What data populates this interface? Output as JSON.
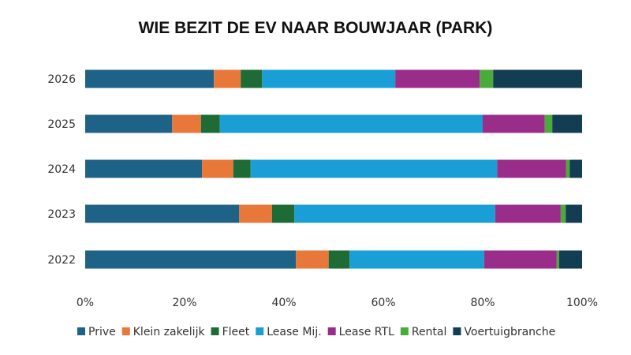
{
  "chart_data": {
    "type": "bar",
    "orientation": "horizontal",
    "stacked": "percent",
    "title": "WIE BEZIT DE EV NAAR BOUWJAAR (PARK)",
    "xlabel": "",
    "ylabel": "",
    "xlim": [
      0,
      100
    ],
    "x_ticks": [
      "0%",
      "20%",
      "40%",
      "60%",
      "80%",
      "100%"
    ],
    "categories": [
      "2026",
      "2025",
      "2024",
      "2023",
      "2022"
    ],
    "legend_position": "bottom",
    "series": [
      {
        "name": "Prive",
        "color": "#1f6287",
        "values": [
          25.9,
          17.5,
          23.5,
          31.0,
          42.4
        ]
      },
      {
        "name": "Klein zakelijk",
        "color": "#e8773a",
        "values": [
          5.4,
          5.8,
          6.3,
          6.6,
          6.6
        ]
      },
      {
        "name": "Fleet",
        "color": "#1e6b35",
        "values": [
          4.3,
          3.8,
          3.5,
          4.5,
          4.2
        ]
      },
      {
        "name": "Lease Mij.",
        "color": "#1a9ed6",
        "values": [
          26.8,
          52.9,
          49.6,
          40.4,
          27.1
        ]
      },
      {
        "name": "Lease RTL",
        "color": "#9b2d8a",
        "values": [
          17.0,
          12.5,
          13.9,
          13.2,
          14.6
        ]
      },
      {
        "name": "Rental",
        "color": "#4aab3a",
        "values": [
          2.7,
          1.5,
          0.7,
          1.0,
          0.5
        ]
      },
      {
        "name": "Voertuigbranche",
        "color": "#123d52",
        "values": [
          17.9,
          6.0,
          2.5,
          3.3,
          4.6
        ]
      }
    ]
  }
}
